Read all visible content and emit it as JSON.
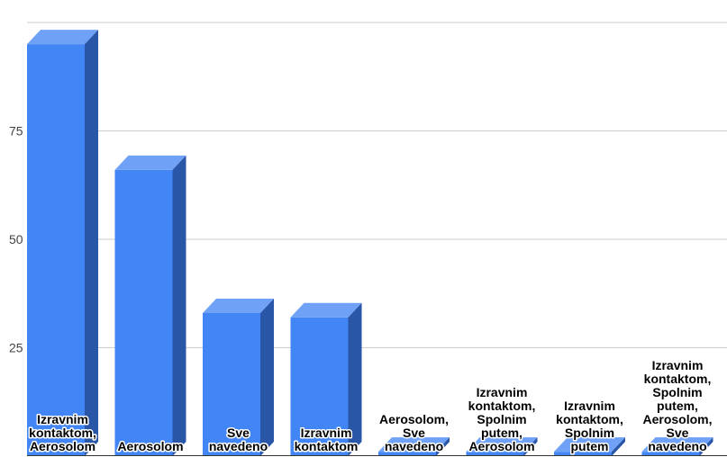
{
  "chart_data": {
    "type": "bar",
    "style": "3d",
    "categories": [
      "Izravnim kontaktom, Aerosolom",
      "Aerosolom",
      "Sve navedeno",
      "Izravnim kontaktom",
      "Aerosolom, Sve navedeno",
      "Izravnim kontaktom, Spolnim putem, Aerosolom",
      "Izravnim kontaktom, Spolnim putem",
      "Izravnim kontaktom, Spolnim putem, Aerosolom, Sve navedeno"
    ],
    "category_lines": [
      [
        "Izravnim",
        "kontaktom,",
        "Aerosolom"
      ],
      [
        "Aerosolom"
      ],
      [
        "Sve",
        "navedeno"
      ],
      [
        "Izravnim",
        "kontaktom"
      ],
      [
        "Aerosolom,",
        "Sve",
        "navedeno"
      ],
      [
        "Izravnim",
        "kontaktom,",
        "Spolnim",
        "putem,",
        "Aerosolom"
      ],
      [
        "Izravnim",
        "kontaktom,",
        "Spolnim",
        "putem"
      ],
      [
        "Izravnim",
        "kontaktom,",
        "Spolnim",
        "putem,",
        "Aerosolom,",
        "Sve",
        "navedeno"
      ]
    ],
    "values": [
      95,
      66,
      33,
      32,
      1,
      1,
      1,
      1
    ],
    "yticks": [
      25,
      50,
      75
    ],
    "ylim": [
      0,
      100
    ],
    "title": "",
    "xlabel": "",
    "ylabel": "",
    "grid": true,
    "legend": "none",
    "colors": {
      "bar_front": "#4285f4",
      "bar_top": "#6fa2f7",
      "bar_side": "#2a56a8",
      "grid": "#cccccc",
      "axis": "#333333"
    }
  }
}
